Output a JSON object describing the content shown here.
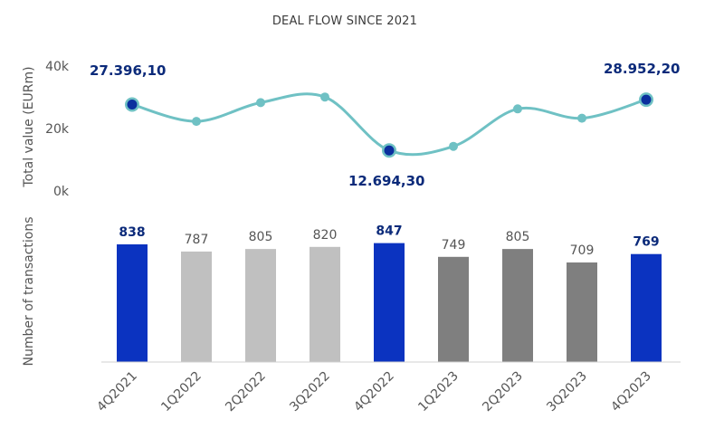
{
  "colors": {
    "highlight": "#0b33c0",
    "bar_2022": "#c0c0c0",
    "bar_2023": "#7f7f7f",
    "line": "#6fc1c4",
    "marker": "#6fc1c4",
    "marker_highlight": "#0b2f9e",
    "label_highlight": "#0b2a7a"
  },
  "chart_data": [
    {
      "type": "line",
      "title": "DEAL FLOW SINCE 2021",
      "ylabel": "Total value (EURm)",
      "ylim": [
        0,
        40000
      ],
      "yticks": [
        "0k",
        "20k",
        "40k"
      ],
      "categories": [
        "4Q2021",
        "1Q2022",
        "2Q2022",
        "3Q2022",
        "4Q2022",
        "1Q2023",
        "2Q2023",
        "3Q2023",
        "4Q2023"
      ],
      "values": [
        27396.1,
        22000,
        28000,
        29800,
        12694.3,
        14000,
        26000,
        23000,
        28952.2
      ],
      "highlighted": [
        0,
        4,
        8
      ],
      "annotations": [
        "27.396,10",
        "12.694,30",
        "28.952,20"
      ]
    },
    {
      "type": "bar",
      "ylabel": "Number of transactions",
      "categories": [
        "4Q2021",
        "1Q2022",
        "2Q2022",
        "3Q2022",
        "4Q2022",
        "1Q2023",
        "2Q2023",
        "3Q2023",
        "4Q2023"
      ],
      "values": [
        838,
        787,
        805,
        820,
        847,
        749,
        805,
        709,
        769
      ],
      "value_labels": [
        "838",
        "787",
        "805",
        "820",
        "847",
        "749",
        "805",
        "709",
        "769"
      ],
      "highlighted": [
        0,
        4,
        8
      ],
      "ylim": [
        0,
        900
      ]
    }
  ]
}
